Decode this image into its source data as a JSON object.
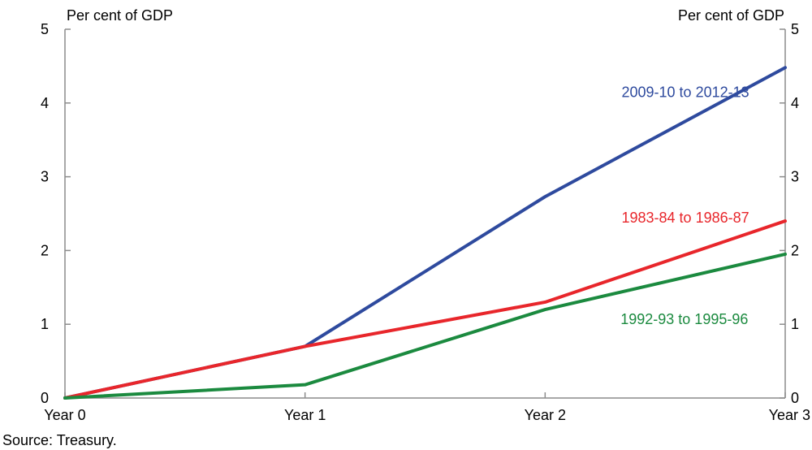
{
  "chart_data": {
    "type": "line",
    "categories": [
      "Year 0",
      "Year 1",
      "Year 2",
      "Year 3"
    ],
    "series": [
      {
        "name": "2009-10 to 2012-13",
        "values": [
          0,
          0.7,
          2.73,
          4.48
        ],
        "color": "#2e4a9e"
      },
      {
        "name": "1983-84 to 1986-87",
        "values": [
          0,
          0.7,
          1.3,
          2.4
        ],
        "color": "#e8262b"
      },
      {
        "name": "1992-93 to 1995-96",
        "values": [
          0,
          0.18,
          1.2,
          1.95
        ],
        "color": "#1b8a3f"
      }
    ],
    "ylim": [
      0,
      5
    ],
    "yticks": [
      0,
      1,
      2,
      3,
      4,
      5
    ],
    "ylabel_left": "Per cent of GDP",
    "ylabel_right": "Per cent of GDP",
    "grid": false,
    "legend": "inline labels"
  },
  "source": "Source: Treasury."
}
